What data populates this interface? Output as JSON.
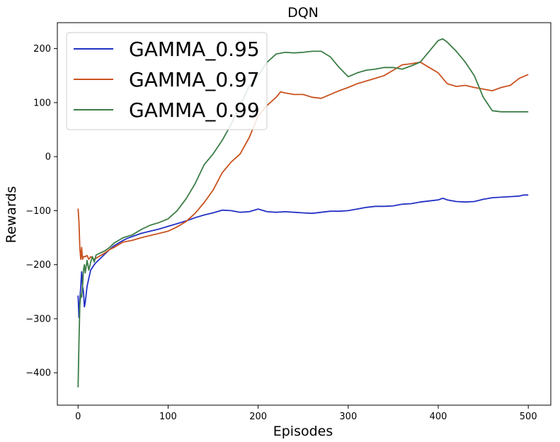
{
  "chart_data": {
    "type": "line",
    "title": "DQN",
    "xlabel": "Episodes",
    "ylabel": "Rewards",
    "xlim": [
      -23,
      525
    ],
    "ylim": [
      -460,
      248
    ],
    "xticks": [
      0,
      100,
      200,
      300,
      400,
      500
    ],
    "yticks": [
      -400,
      -300,
      -200,
      -100,
      0,
      100,
      200
    ],
    "xtick_labels": [
      "0",
      "100",
      "200",
      "300",
      "400",
      "500"
    ],
    "ytick_labels": [
      "−400",
      "−300",
      "−200",
      "−100",
      "0",
      "100",
      "200"
    ],
    "grid": false,
    "legend_position": "upper-left",
    "series": [
      {
        "name": "GAMMA_0.95",
        "color": "#2331c4",
        "points": [
          [
            0,
            -257
          ],
          [
            1,
            -298
          ],
          [
            2,
            -265
          ],
          [
            3,
            -240
          ],
          [
            4,
            -213
          ],
          [
            5,
            -240
          ],
          [
            6,
            -250
          ],
          [
            7,
            -278
          ],
          [
            8,
            -270
          ],
          [
            10,
            -240
          ],
          [
            12,
            -225
          ],
          [
            14,
            -210
          ],
          [
            16,
            -205
          ],
          [
            18,
            -200
          ],
          [
            20,
            -196
          ],
          [
            25,
            -188
          ],
          [
            30,
            -180
          ],
          [
            35,
            -172
          ],
          [
            40,
            -165
          ],
          [
            45,
            -160
          ],
          [
            50,
            -155
          ],
          [
            55,
            -151
          ],
          [
            60,
            -148
          ],
          [
            70,
            -142
          ],
          [
            80,
            -138
          ],
          [
            90,
            -134
          ],
          [
            100,
            -129
          ],
          [
            110,
            -124
          ],
          [
            120,
            -119
          ],
          [
            130,
            -113
          ],
          [
            140,
            -108
          ],
          [
            150,
            -104
          ],
          [
            160,
            -99
          ],
          [
            170,
            -100
          ],
          [
            180,
            -103
          ],
          [
            190,
            -102
          ],
          [
            200,
            -97
          ],
          [
            210,
            -102
          ],
          [
            220,
            -103
          ],
          [
            230,
            -102
          ],
          [
            240,
            -103
          ],
          [
            250,
            -104
          ],
          [
            260,
            -105
          ],
          [
            270,
            -103
          ],
          [
            280,
            -101
          ],
          [
            290,
            -101
          ],
          [
            300,
            -100
          ],
          [
            310,
            -97
          ],
          [
            320,
            -94
          ],
          [
            330,
            -92
          ],
          [
            340,
            -92
          ],
          [
            350,
            -91
          ],
          [
            360,
            -88
          ],
          [
            370,
            -87
          ],
          [
            380,
            -84
          ],
          [
            390,
            -82
          ],
          [
            400,
            -80
          ],
          [
            405,
            -77
          ],
          [
            410,
            -80
          ],
          [
            420,
            -83
          ],
          [
            430,
            -84
          ],
          [
            440,
            -83
          ],
          [
            450,
            -79
          ],
          [
            460,
            -76
          ],
          [
            470,
            -75
          ],
          [
            480,
            -74
          ],
          [
            490,
            -73
          ],
          [
            495,
            -71
          ],
          [
            500,
            -71
          ]
        ]
      },
      {
        "name": "GAMMA_0.97",
        "color": "#c9521e",
        "points": [
          [
            0,
            -96
          ],
          [
            1,
            -120
          ],
          [
            2,
            -170
          ],
          [
            3,
            -190
          ],
          [
            4,
            -168
          ],
          [
            5,
            -190
          ],
          [
            6,
            -185
          ],
          [
            8,
            -185
          ],
          [
            10,
            -183
          ],
          [
            12,
            -190
          ],
          [
            14,
            -185
          ],
          [
            16,
            -188
          ],
          [
            18,
            -190
          ],
          [
            20,
            -188
          ],
          [
            25,
            -183
          ],
          [
            30,
            -178
          ],
          [
            35,
            -172
          ],
          [
            40,
            -168
          ],
          [
            45,
            -163
          ],
          [
            50,
            -158
          ],
          [
            60,
            -155
          ],
          [
            70,
            -150
          ],
          [
            80,
            -146
          ],
          [
            90,
            -142
          ],
          [
            100,
            -138
          ],
          [
            110,
            -130
          ],
          [
            120,
            -120
          ],
          [
            130,
            -105
          ],
          [
            140,
            -85
          ],
          [
            150,
            -62
          ],
          [
            160,
            -30
          ],
          [
            170,
            -10
          ],
          [
            180,
            5
          ],
          [
            190,
            35
          ],
          [
            200,
            75
          ],
          [
            210,
            95
          ],
          [
            220,
            110
          ],
          [
            225,
            120
          ],
          [
            230,
            118
          ],
          [
            240,
            115
          ],
          [
            250,
            115
          ],
          [
            260,
            110
          ],
          [
            270,
            108
          ],
          [
            280,
            115
          ],
          [
            290,
            122
          ],
          [
            300,
            128
          ],
          [
            310,
            135
          ],
          [
            320,
            140
          ],
          [
            330,
            145
          ],
          [
            340,
            150
          ],
          [
            350,
            160
          ],
          [
            360,
            170
          ],
          [
            370,
            172
          ],
          [
            380,
            175
          ],
          [
            390,
            165
          ],
          [
            400,
            155
          ],
          [
            410,
            135
          ],
          [
            420,
            130
          ],
          [
            430,
            132
          ],
          [
            440,
            128
          ],
          [
            450,
            125
          ],
          [
            460,
            122
          ],
          [
            470,
            128
          ],
          [
            480,
            132
          ],
          [
            490,
            145
          ],
          [
            500,
            152
          ]
        ]
      },
      {
        "name": "GAMMA_0.99",
        "color": "#3c7d46",
        "points": [
          [
            0,
            -427
          ],
          [
            1,
            -345
          ],
          [
            2,
            -275
          ],
          [
            3,
            -255
          ],
          [
            4,
            -260
          ],
          [
            5,
            -240
          ],
          [
            6,
            -210
          ],
          [
            7,
            -200
          ],
          [
            8,
            -215
          ],
          [
            10,
            -192
          ],
          [
            12,
            -210
          ],
          [
            14,
            -195
          ],
          [
            16,
            -185
          ],
          [
            18,
            -195
          ],
          [
            20,
            -182
          ],
          [
            25,
            -178
          ],
          [
            30,
            -174
          ],
          [
            35,
            -168
          ],
          [
            40,
            -160
          ],
          [
            45,
            -155
          ],
          [
            50,
            -150
          ],
          [
            60,
            -145
          ],
          [
            70,
            -135
          ],
          [
            80,
            -127
          ],
          [
            90,
            -122
          ],
          [
            100,
            -115
          ],
          [
            110,
            -100
          ],
          [
            120,
            -78
          ],
          [
            130,
            -50
          ],
          [
            140,
            -15
          ],
          [
            150,
            5
          ],
          [
            160,
            30
          ],
          [
            170,
            60
          ],
          [
            180,
            95
          ],
          [
            190,
            130
          ],
          [
            200,
            150
          ],
          [
            210,
            175
          ],
          [
            220,
            190
          ],
          [
            230,
            193
          ],
          [
            240,
            192
          ],
          [
            250,
            193
          ],
          [
            260,
            195
          ],
          [
            270,
            195
          ],
          [
            280,
            185
          ],
          [
            290,
            165
          ],
          [
            300,
            148
          ],
          [
            310,
            155
          ],
          [
            320,
            160
          ],
          [
            330,
            162
          ],
          [
            340,
            165
          ],
          [
            350,
            165
          ],
          [
            360,
            162
          ],
          [
            370,
            168
          ],
          [
            380,
            175
          ],
          [
            390,
            195
          ],
          [
            400,
            215
          ],
          [
            405,
            218
          ],
          [
            410,
            212
          ],
          [
            420,
            195
          ],
          [
            430,
            175
          ],
          [
            440,
            150
          ],
          [
            450,
            110
          ],
          [
            460,
            85
          ],
          [
            470,
            83
          ],
          [
            480,
            83
          ],
          [
            490,
            83
          ],
          [
            500,
            83
          ]
        ]
      }
    ]
  }
}
